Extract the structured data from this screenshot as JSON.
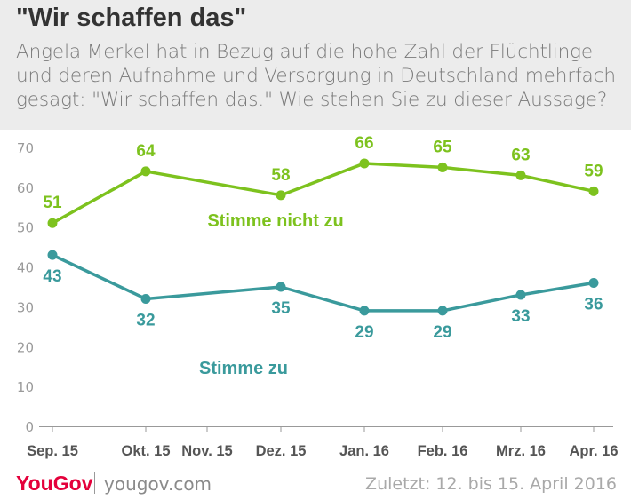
{
  "header": {
    "title": "\"Wir schaffen das\"",
    "subtitle_lines": [
      "Angela Merkel hat in Bezug auf die hohe Zahl der Flüchtlinge",
      "und deren Aufnahme und Versorgung in Deutschland mehrfach",
      "gesagt: \"Wir schaffen das.\" Wie stehen Sie zu dieser Aussage?"
    ]
  },
  "chart_data": {
    "type": "line",
    "title": "\"Wir schaffen das\"",
    "categories": [
      "Sep. 15",
      "Okt. 15",
      "Nov. 15",
      "Dez. 15",
      "Jan. 16",
      "Feb. 16",
      "Mrz. 16",
      "Apr. 16"
    ],
    "x": [
      "2015-09",
      "2015-10",
      "2015-12",
      "2016-01",
      "2016-02",
      "2016-03",
      "2016-04"
    ],
    "series": [
      {
        "name": "Stimme nicht zu",
        "color": "#7dc21e",
        "x": [
          "2015-09-15",
          "2015-10-15",
          "2015-12-15",
          "2016-01-15",
          "2016-02-15",
          "2016-03-15",
          "2016-04-15"
        ],
        "values": [
          51,
          64,
          58,
          66,
          65,
          63,
          59
        ]
      },
      {
        "name": "Stimme zu",
        "color": "#3a9a9c",
        "x": [
          "2015-09-15",
          "2015-10-15",
          "2015-12-15",
          "2016-01-15",
          "2016-02-15",
          "2016-03-15",
          "2016-04-15"
        ],
        "values": [
          43,
          32,
          35,
          29,
          29,
          33,
          36
        ]
      }
    ],
    "yticks": [
      "0",
      "10",
      "20",
      "30",
      "40",
      "50",
      "60",
      "70"
    ],
    "ylim": [
      0,
      70
    ],
    "grid": false,
    "xlabel": "",
    "ylabel": ""
  },
  "footer": {
    "brand": "YouGov",
    "site": "yougov.com",
    "updated": "Zuletzt: 12. bis 15. April 2016"
  }
}
